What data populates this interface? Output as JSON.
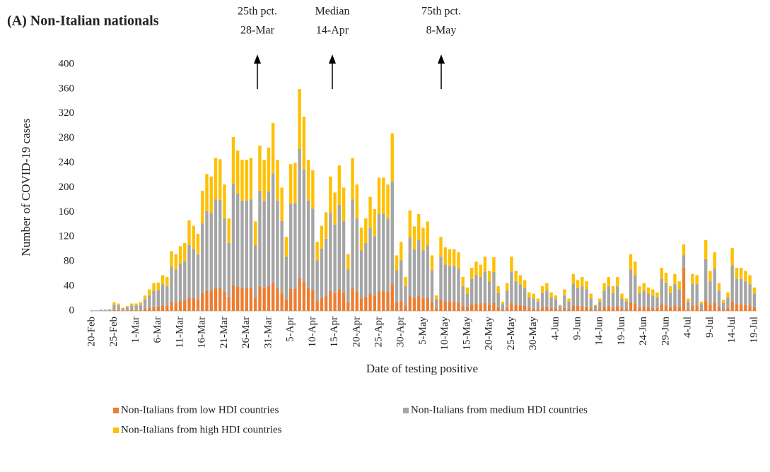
{
  "chart_data": {
    "type": "bar",
    "stacked": true,
    "title": "(A) Non-Italian nationals",
    "y_label": "Number of COVID-19 cases",
    "x_label": "Date of testing positive",
    "annotations": [
      {
        "label": "25th pct.",
        "date": "28-Mar"
      },
      {
        "label": "Median",
        "date": "14-Apr"
      },
      {
        "label": "75th pct.",
        "date": "8-May"
      }
    ],
    "categories": [
      "20-Feb",
      null,
      null,
      null,
      null,
      "25-Feb",
      null,
      null,
      null,
      null,
      "1-Mar",
      null,
      null,
      null,
      null,
      "6-Mar",
      null,
      null,
      null,
      null,
      "11-Mar",
      null,
      null,
      null,
      null,
      "16-Mar",
      null,
      null,
      null,
      null,
      "21-Mar",
      null,
      null,
      null,
      null,
      "26-Mar",
      null,
      null,
      null,
      null,
      "31-Mar",
      null,
      null,
      null,
      null,
      "5-Apr",
      null,
      null,
      null,
      null,
      "10-Apr",
      null,
      null,
      null,
      null,
      "15-Apr",
      null,
      null,
      null,
      null,
      "20-Apr",
      null,
      null,
      null,
      null,
      "25-Apr",
      null,
      null,
      null,
      null,
      "30-Apr",
      null,
      null,
      null,
      null,
      "5-May",
      null,
      null,
      null,
      null,
      "10-May",
      null,
      null,
      null,
      null,
      "15-May",
      null,
      null,
      null,
      null,
      "20-May",
      null,
      null,
      null,
      null,
      "25-May",
      null,
      null,
      null,
      null,
      "30-May",
      null,
      null,
      null,
      null,
      "4-Jun",
      null,
      null,
      null,
      null,
      "9-Jun",
      null,
      null,
      null,
      null,
      "14-Jun",
      null,
      null,
      null,
      null,
      "19-Jun",
      null,
      null,
      null,
      null,
      "24-Jun",
      null,
      null,
      null,
      null,
      "29-Jun",
      null,
      null,
      null,
      null,
      "4-Jul",
      null,
      null,
      null,
      null,
      "9-Jul",
      null,
      null,
      null,
      null,
      "14-Jul",
      null,
      null,
      null,
      null,
      "19-Jul"
    ],
    "series": [
      {
        "name": "Non-Italians from low HDI countries",
        "color": "#ed7d31",
        "values": [
          0,
          0,
          0,
          0,
          0,
          2,
          2,
          1,
          1,
          2,
          2,
          2,
          4,
          5,
          7,
          7,
          9,
          8,
          15,
          14,
          16,
          17,
          22,
          21,
          19,
          29,
          33,
          33,
          37,
          37,
          31,
          23,
          42,
          39,
          37,
          37,
          37,
          22,
          40,
          37,
          40,
          46,
          37,
          30,
          18,
          36,
          36,
          54,
          47,
          37,
          34,
          17,
          21,
          24,
          33,
          29,
          35,
          30,
          14,
          37,
          31,
          20,
          23,
          28,
          25,
          32,
          32,
          31,
          43,
          14,
          17,
          8,
          24,
          21,
          24,
          20,
          22,
          14,
          4,
          18,
          15,
          15,
          15,
          14,
          8,
          6,
          11,
          12,
          11,
          13,
          10,
          13,
          6,
          2,
          7,
          13,
          10,
          9,
          8,
          5,
          4,
          3,
          6,
          7,
          5,
          4,
          2,
          5,
          3,
          9,
          8,
          8,
          7,
          4,
          2,
          3,
          7,
          8,
          6,
          8,
          4,
          3,
          14,
          12,
          6,
          7,
          6,
          5,
          5,
          11,
          9,
          6,
          9,
          7,
          70,
          3,
          9,
          9,
          2,
          17,
          10,
          14,
          7,
          3,
          5,
          15,
          11,
          11,
          10,
          9,
          6
        ]
      },
      {
        "name": "Non-Italians from medium HDI countries",
        "color": "#a5a5a5",
        "values": [
          1,
          1,
          2,
          2,
          2,
          8,
          7,
          3,
          5,
          7,
          7,
          8,
          15,
          20,
          26,
          27,
          34,
          32,
          56,
          53,
          61,
          64,
          85,
          80,
          73,
          113,
          129,
          126,
          144,
          143,
          119,
          87,
          164,
          151,
          142,
          142,
          144,
          84,
          155,
          142,
          154,
          177,
          142,
          116,
          70,
          138,
          139,
          209,
          183,
          142,
          132,
          65,
          80,
          93,
          126,
          111,
          137,
          116,
          53,
          144,
          119,
          78,
          87,
          107,
          96,
          125,
          125,
          119,
          167,
          52,
          65,
          32,
          95,
          79,
          91,
          78,
          84,
          52,
          15,
          70,
          60,
          58,
          58,
          55,
          32,
          22,
          41,
          46,
          44,
          51,
          38,
          50,
          23,
          9,
          26,
          51,
          38,
          34,
          29,
          17,
          16,
          12,
          23,
          26,
          17,
          15,
          6,
          20,
          12,
          35,
          29,
          32,
          28,
          16,
          6,
          12,
          26,
          32,
          23,
          32,
          16,
          12,
          53,
          46,
          23,
          26,
          22,
          20,
          17,
          41,
          36,
          23,
          35,
          28,
          20,
          12,
          35,
          34,
          9,
          67,
          38,
          55,
          26,
          10,
          17,
          59,
          41,
          41,
          38,
          34,
          22
        ]
      },
      {
        "name": "Non-Italians from high HDI countries",
        "color": "#ffc000",
        "values": [
          0,
          0,
          0,
          0,
          1,
          4,
          3,
          1,
          2,
          3,
          3,
          4,
          6,
          10,
          12,
          12,
          15,
          15,
          26,
          25,
          28,
          29,
          40,
          37,
          33,
          53,
          60,
          59,
          67,
          66,
          55,
          40,
          76,
          70,
          66,
          66,
          67,
          39,
          73,
          66,
          71,
          82,
          66,
          54,
          32,
          64,
          65,
          97,
          85,
          66,
          62,
          30,
          37,
          43,
          59,
          52,
          64,
          54,
          25,
          67,
          55,
          37,
          40,
          50,
          44,
          59,
          59,
          55,
          78,
          24,
          30,
          15,
          44,
          37,
          42,
          37,
          39,
          24,
          6,
          32,
          28,
          27,
          27,
          26,
          15,
          10,
          18,
          22,
          20,
          24,
          17,
          24,
          11,
          4,
          12,
          24,
          17,
          15,
          13,
          8,
          8,
          5,
          11,
          12,
          8,
          6,
          2,
          10,
          5,
          16,
          13,
          15,
          13,
          8,
          2,
          5,
          12,
          15,
          11,
          15,
          8,
          5,
          25,
          22,
          11,
          12,
          10,
          10,
          8,
          18,
          17,
          11,
          16,
          13,
          18,
          5,
          16,
          15,
          4,
          31,
          17,
          26,
          12,
          5,
          8,
          28,
          18,
          18,
          17,
          15,
          10
        ]
      }
    ],
    "ylim": [
      0,
      400
    ],
    "yticks": [
      0,
      40,
      80,
      120,
      160,
      200,
      240,
      280,
      320,
      360,
      400
    ],
    "grid": false
  }
}
